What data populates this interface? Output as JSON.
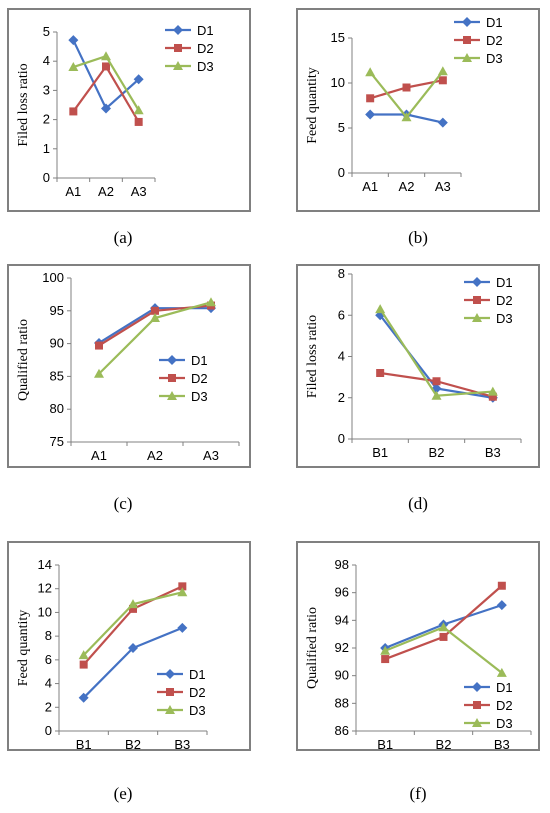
{
  "colors": {
    "D1": "#4472C4",
    "D2": "#C0504D",
    "D3": "#9BBB59",
    "frame": "#808080",
    "axis": "#808080"
  },
  "chart_data": [
    {
      "id": "a",
      "type": "line",
      "caption": "(a)",
      "caption_letter": "a",
      "ylabel": "Filed loss ratio",
      "categories": [
        "A1",
        "A2",
        "A3"
      ],
      "ylim": [
        0,
        5
      ],
      "yticks": [
        "0",
        "1",
        "2",
        "3",
        "4",
        "5"
      ],
      "legend": "top-right",
      "grid": false,
      "series": [
        {
          "name": "D1",
          "marker": "diamond",
          "values": [
            4.72,
            2.38,
            3.38
          ]
        },
        {
          "name": "D2",
          "marker": "square",
          "values": [
            2.28,
            3.82,
            1.92
          ]
        },
        {
          "name": "D3",
          "marker": "triangle",
          "values": [
            3.8,
            4.17,
            2.32
          ]
        }
      ]
    },
    {
      "id": "b",
      "type": "line",
      "caption": "(b)",
      "caption_letter": "b",
      "ylabel": "Feed quantity",
      "categories": [
        "A1",
        "A2",
        "A3"
      ],
      "ylim": [
        0,
        15
      ],
      "yticks": [
        "0",
        "5",
        "10",
        "15"
      ],
      "legend": "top-right",
      "grid": false,
      "series": [
        {
          "name": "D1",
          "marker": "diamond",
          "values": [
            6.5,
            6.5,
            5.6
          ]
        },
        {
          "name": "D2",
          "marker": "square",
          "values": [
            8.3,
            9.5,
            10.3
          ]
        },
        {
          "name": "D3",
          "marker": "triangle",
          "values": [
            11.2,
            6.2,
            11.3
          ]
        }
      ]
    },
    {
      "id": "c",
      "type": "line",
      "caption": "(c)",
      "caption_letter": "c",
      "ylabel": "Qualified ratio",
      "categories": [
        "A1",
        "A2",
        "A3"
      ],
      "ylim": [
        75,
        100
      ],
      "yticks": [
        "75",
        "80",
        "85",
        "90",
        "95",
        "100"
      ],
      "legend": "bottom-right",
      "grid": false,
      "series": [
        {
          "name": "D1",
          "marker": "diamond",
          "values": [
            90.1,
            95.4,
            95.4
          ]
        },
        {
          "name": "D2",
          "marker": "square",
          "values": [
            89.7,
            95.0,
            95.8
          ]
        },
        {
          "name": "D3",
          "marker": "triangle",
          "values": [
            85.4,
            93.9,
            96.3
          ]
        }
      ]
    },
    {
      "id": "d",
      "type": "line",
      "caption": "(d)",
      "caption_letter": "d",
      "ylabel": "Filed loss ratio",
      "categories": [
        "B1",
        "B2",
        "B3"
      ],
      "ylim": [
        0,
        8
      ],
      "yticks": [
        "0",
        "2",
        "4",
        "6",
        "8"
      ],
      "legend": "top-right",
      "grid": false,
      "series": [
        {
          "name": "D1",
          "marker": "diamond",
          "values": [
            6.0,
            2.45,
            2.0
          ]
        },
        {
          "name": "D2",
          "marker": "square",
          "values": [
            3.2,
            2.8,
            2.05
          ]
        },
        {
          "name": "D3",
          "marker": "triangle",
          "values": [
            6.3,
            2.1,
            2.3
          ]
        }
      ]
    },
    {
      "id": "e",
      "type": "line",
      "caption": "(e)",
      "caption_letter": "e",
      "ylabel": "Feed quantity",
      "categories": [
        "B1",
        "B2",
        "B3"
      ],
      "ylim": [
        0,
        14
      ],
      "yticks": [
        "0",
        "2",
        "4",
        "6",
        "8",
        "10",
        "12",
        "14"
      ],
      "legend": "bottom-right",
      "grid": false,
      "series": [
        {
          "name": "D1",
          "marker": "diamond",
          "values": [
            2.8,
            7.0,
            8.7
          ]
        },
        {
          "name": "D2",
          "marker": "square",
          "values": [
            5.6,
            10.3,
            12.2
          ]
        },
        {
          "name": "D3",
          "marker": "triangle",
          "values": [
            6.4,
            10.7,
            11.7
          ]
        }
      ]
    },
    {
      "id": "f",
      "type": "line",
      "caption": "(f)",
      "caption_letter": "f",
      "ylabel": "Qualified ratio",
      "categories": [
        "B1",
        "B2",
        "B3"
      ],
      "ylim": [
        86,
        98
      ],
      "yticks": [
        "86",
        "88",
        "90",
        "92",
        "94",
        "96",
        "98"
      ],
      "legend": "bottom-right",
      "grid": false,
      "series": [
        {
          "name": "D1",
          "marker": "diamond",
          "values": [
            92.0,
            93.7,
            95.1
          ]
        },
        {
          "name": "D2",
          "marker": "square",
          "values": [
            91.2,
            92.8,
            96.5
          ]
        },
        {
          "name": "D3",
          "marker": "triangle",
          "values": [
            91.8,
            93.5,
            90.2
          ]
        }
      ]
    }
  ]
}
